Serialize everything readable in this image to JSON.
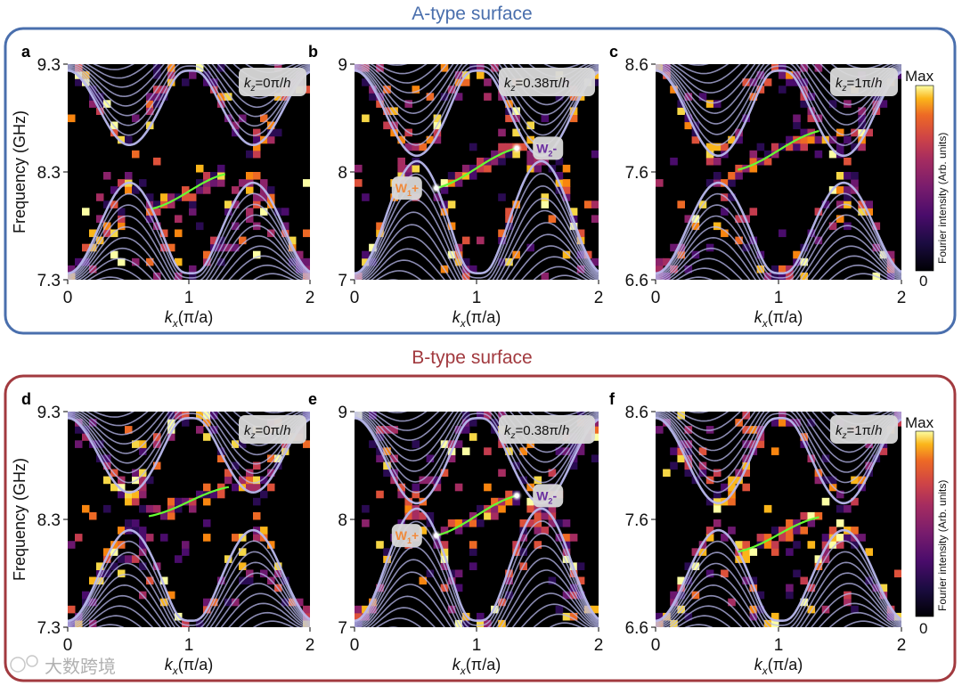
{
  "figure": {
    "section_a_title": "A-type surface",
    "section_b_title": "B-type surface",
    "colors": {
      "section_a_frame": "#4a6fad",
      "section_b_frame": "#a23a3f",
      "plot_background": "#000000",
      "bulk_bands": "#b9b9ee",
      "surface_arc": "#66ff33",
      "w1_label": "#f08a3c",
      "w2_label": "#6a2fa0"
    },
    "watermark": "大数跨境"
  },
  "colorbar": {
    "max_label": "Max",
    "min_label": "0",
    "label": "Fourier intensity (Arb. units)",
    "colormap": "inferno"
  },
  "chart_data": [
    {
      "panel": "a",
      "surface": "A-type",
      "type": "heatmap",
      "kz_label": "=0π/",
      "ylabel": "Frequency (GHz)",
      "xlabel": "(π/a)",
      "x_ticks": [
        "0",
        "1",
        "2"
      ],
      "y_ticks": [
        "7.3",
        "8.3",
        "9.3"
      ],
      "xlim": [
        0,
        2
      ],
      "ylim": [
        7.3,
        9.3
      ],
      "gap": [
        8.2,
        8.55
      ],
      "arc": {
        "x_start": 0.7,
        "f_start": 7.96,
        "x_end": 1.3,
        "f_end": 8.28
      },
      "weyl_points": []
    },
    {
      "panel": "b",
      "surface": "A-type",
      "type": "heatmap",
      "kz_label": "=0.38π/",
      "ylabel": "",
      "xlabel": "(π/a)",
      "x_ticks": [
        "0",
        "1",
        "2"
      ],
      "y_ticks": [
        "7",
        "8",
        "9"
      ],
      "xlim": [
        0,
        2
      ],
      "ylim": [
        7,
        9
      ],
      "gap": [
        8.1,
        8.15
      ],
      "arc": {
        "x_start": 0.67,
        "f_start": 7.85,
        "x_end": 1.33,
        "f_end": 8.22
      },
      "weyl_points": [
        {
          "label": "W",
          "sub": "1",
          "sign": "+",
          "x": 0.67,
          "f": 7.85
        },
        {
          "label": "W",
          "sub": "2",
          "sign": "-",
          "x": 1.33,
          "f": 8.22
        }
      ]
    },
    {
      "panel": "c",
      "surface": "A-type",
      "type": "heatmap",
      "kz_label": "=1π/",
      "ylabel": "",
      "xlabel": "(π/a)",
      "x_ticks": [
        "0",
        "1",
        "2"
      ],
      "y_ticks": [
        "6.6",
        "7.6",
        "8.6"
      ],
      "xlim": [
        0,
        2
      ],
      "ylim": [
        6.6,
        8.6
      ],
      "gap": [
        7.5,
        7.75
      ],
      "arc": {
        "x_start": 0.67,
        "f_start": 7.62,
        "x_end": 1.33,
        "f_end": 7.98
      },
      "weyl_points": []
    },
    {
      "panel": "d",
      "surface": "B-type",
      "type": "heatmap",
      "kz_label": "=0π/",
      "ylabel": "Frequency (GHz)",
      "xlabel": "(π/a)",
      "x_ticks": [
        "0",
        "1",
        "2"
      ],
      "y_ticks": [
        "7.3",
        "8.3",
        "9.3"
      ],
      "xlim": [
        0,
        2
      ],
      "ylim": [
        7.3,
        9.3
      ],
      "gap": [
        8.2,
        8.55
      ],
      "arc": {
        "x_start": 0.67,
        "f_start": 8.33,
        "x_end": 1.33,
        "f_end": 8.6
      },
      "weyl_points": []
    },
    {
      "panel": "e",
      "surface": "B-type",
      "type": "heatmap",
      "kz_label": "=0.38π/",
      "ylabel": "",
      "xlabel": "(π/a)",
      "x_ticks": [
        "0",
        "1",
        "2"
      ],
      "y_ticks": [
        "7",
        "8",
        "9"
      ],
      "xlim": [
        0,
        2
      ],
      "ylim": [
        7,
        9
      ],
      "gap": [
        8.1,
        8.15
      ],
      "arc": {
        "x_start": 0.67,
        "f_start": 7.85,
        "x_end": 1.33,
        "f_end": 8.22
      },
      "weyl_points": [
        {
          "label": "W",
          "sub": "1",
          "sign": "+",
          "x": 0.67,
          "f": 7.85
        },
        {
          "label": "W",
          "sub": "2",
          "sign": "-",
          "x": 1.33,
          "f": 8.22
        }
      ]
    },
    {
      "panel": "f",
      "surface": "B-type",
      "type": "heatmap",
      "kz_label": "=1π/",
      "ylabel": "",
      "xlabel": "(π/a)",
      "x_ticks": [
        "0",
        "1",
        "2"
      ],
      "y_ticks": [
        "6.6",
        "7.6",
        "8.6"
      ],
      "xlim": [
        0,
        2
      ],
      "ylim": [
        6.6,
        8.6
      ],
      "gap": [
        7.5,
        7.75
      ],
      "arc": {
        "x_start": 0.67,
        "f_start": 7.3,
        "x_end": 1.33,
        "f_end": 7.62
      },
      "weyl_points": []
    }
  ]
}
